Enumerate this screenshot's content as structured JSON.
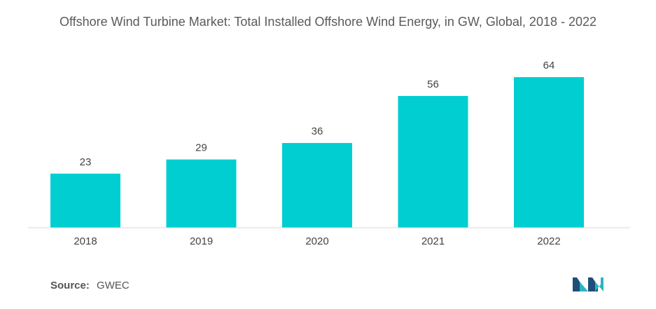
{
  "chart_data": {
    "type": "bar",
    "title": "Offshore Wind Turbine Market: Total Installed Offshore Wind Energy, in GW, Global, 2018 - 2022",
    "categories": [
      "2018",
      "2019",
      "2020",
      "2021",
      "2022"
    ],
    "values": [
      23,
      29,
      36,
      56,
      64
    ],
    "xlabel": "",
    "ylabel": "",
    "ylim": [
      0,
      70
    ],
    "grid": false,
    "data_labels": true,
    "bar_color": "#00CED1"
  },
  "footer": {
    "source_label": "Source:",
    "source_value": "GWEC"
  },
  "colors": {
    "bar": "#00CED1",
    "axis": "#d9d9d9",
    "text": "#555555",
    "logo_dark": "#1f4e79",
    "logo_accent": "#2bb5c0"
  },
  "logo_icon": "mordor-intelligence-logo-icon"
}
